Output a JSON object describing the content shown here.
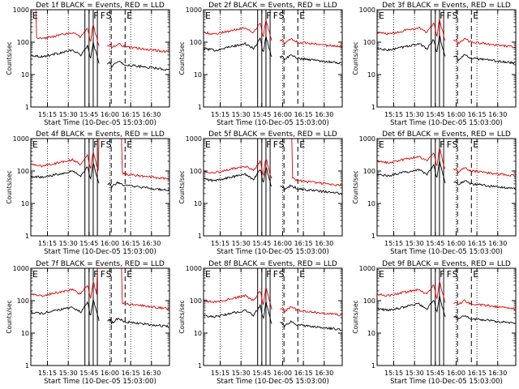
{
  "chart_data": [
    {
      "type": "line",
      "title": "Det 1f BLACK = Events, RED = LLD",
      "ylabel": "Counts/sec",
      "xlabel": "Start Time (10-Dec-05 15:03:00)",
      "x_tick_labels": [
        "15:15",
        "15:30",
        "15:45",
        "16:00",
        "16:15",
        "16:30"
      ],
      "y_tick_labels": [
        "1",
        "10",
        "100",
        "1000"
      ],
      "ylim": [
        1,
        1000
      ],
      "xlim_minutes": [
        0,
        100
      ],
      "flag_labels": [
        "E",
        "F",
        "F",
        "S",
        "E"
      ],
      "flag_minutes": [
        0,
        44,
        49,
        53,
        68
      ],
      "series": [
        {
          "name": "Events",
          "color": "#000000",
          "shape": "1"
        },
        {
          "name": "LLD",
          "color": "#e00000",
          "shape": "1r"
        }
      ]
    },
    {
      "type": "line",
      "title": "Det 2f BLACK = Events, RED = LLD",
      "ylabel": "Counts/sec",
      "xlabel": "Start Time (10-Dec-05 15:03:00)",
      "x_tick_labels": [
        "15:15",
        "15:30",
        "15:45",
        "16:00",
        "16:15",
        "16:30"
      ],
      "y_tick_labels": [
        "1",
        "10",
        "100",
        "1000"
      ],
      "ylim": [
        1,
        1000
      ],
      "xlim_minutes": [
        0,
        100
      ],
      "flag_labels": [
        "E",
        "F",
        "F",
        "S",
        "E"
      ],
      "flag_minutes": [
        0,
        44,
        49,
        53,
        68
      ],
      "series": [
        {
          "name": "Events",
          "color": "#000000",
          "shape": "2"
        },
        {
          "name": "LLD",
          "color": "#e00000",
          "shape": "2r"
        }
      ]
    },
    {
      "type": "line",
      "title": "Det 3f BLACK = Events, RED = LLD",
      "ylabel": "Counts/sec",
      "xlabel": "Start Time (10-Dec-05 15:03:00)",
      "x_tick_labels": [
        "15:15",
        "15:30",
        "15:45",
        "16:00",
        "16:15",
        "16:30"
      ],
      "y_tick_labels": [
        "1",
        "10",
        "100",
        "1000"
      ],
      "ylim": [
        1,
        1000
      ],
      "xlim_minutes": [
        0,
        100
      ],
      "flag_labels": [
        "E",
        "F",
        "F",
        "S",
        "E"
      ],
      "flag_minutes": [
        0,
        44,
        49,
        53,
        68
      ],
      "series": [
        {
          "name": "Events",
          "color": "#000000",
          "shape": "3"
        },
        {
          "name": "LLD",
          "color": "#e00000",
          "shape": "3r"
        }
      ]
    },
    {
      "type": "line",
      "title": "Det 4f BLACK = Events, RED = LLD",
      "ylabel": "Counts/sec",
      "xlabel": "Start Time (10-Dec-05 15:03:00)",
      "x_tick_labels": [
        "15:15",
        "15:30",
        "15:45",
        "16:00",
        "16:15",
        "16:30"
      ],
      "y_tick_labels": [
        "1",
        "10",
        "100",
        "1000"
      ],
      "ylim": [
        1,
        1000
      ],
      "xlim_minutes": [
        0,
        100
      ],
      "flag_labels": [
        "E",
        "F",
        "F",
        "S",
        "E"
      ],
      "flag_minutes": [
        0,
        44,
        49,
        53,
        68
      ],
      "series": [
        {
          "name": "Events",
          "color": "#000000",
          "shape": "4"
        },
        {
          "name": "LLD",
          "color": "#e00000",
          "shape": "4r"
        }
      ]
    },
    {
      "type": "line",
      "title": "Det 5f BLACK = Events, RED = LLD",
      "ylabel": "Counts/sec",
      "xlabel": "Start Time (10-Dec-05 15:03:00)",
      "x_tick_labels": [
        "15:15",
        "15:30",
        "15:45",
        "16:00",
        "16:15",
        "16:30"
      ],
      "y_tick_labels": [
        "1",
        "10",
        "100",
        "1000"
      ],
      "ylim": [
        1,
        1000
      ],
      "xlim_minutes": [
        0,
        100
      ],
      "flag_labels": [
        "E",
        "F",
        "F",
        "S",
        "E"
      ],
      "flag_minutes": [
        0,
        44,
        49,
        53,
        68
      ],
      "series": [
        {
          "name": "Events",
          "color": "#000000",
          "shape": "5"
        },
        {
          "name": "LLD",
          "color": "#e00000",
          "shape": "5r"
        }
      ]
    },
    {
      "type": "line",
      "title": "Det 6f BLACK = Events, RED = LLD",
      "ylabel": "Counts/sec",
      "xlabel": "Start Time (10-Dec-05 15:03:00)",
      "x_tick_labels": [
        "15:15",
        "15:30",
        "15:45",
        "16:00",
        "16:15",
        "16:30"
      ],
      "y_tick_labels": [
        "1",
        "10",
        "100",
        "1000"
      ],
      "ylim": [
        1,
        1000
      ],
      "xlim_minutes": [
        0,
        100
      ],
      "flag_labels": [
        "E",
        "F",
        "F",
        "S",
        "E"
      ],
      "flag_minutes": [
        0,
        44,
        49,
        53,
        68
      ],
      "series": [
        {
          "name": "Events",
          "color": "#000000",
          "shape": "6"
        },
        {
          "name": "LLD",
          "color": "#e00000",
          "shape": "6r"
        }
      ]
    },
    {
      "type": "line",
      "title": "Det 7f BLACK = Events, RED = LLD",
      "ylabel": "Counts/sec",
      "xlabel": "Start Time (10-Dec-05 15:03:00)",
      "x_tick_labels": [
        "15:15",
        "15:30",
        "15:45",
        "16:00",
        "16:15",
        "16:30"
      ],
      "y_tick_labels": [
        "1",
        "10",
        "100",
        "1000"
      ],
      "ylim": [
        1,
        1000
      ],
      "xlim_minutes": [
        0,
        100
      ],
      "flag_labels": [
        "E",
        "F",
        "F",
        "S",
        "E"
      ],
      "flag_minutes": [
        0,
        44,
        49,
        53,
        68
      ],
      "series": [
        {
          "name": "Events",
          "color": "#000000",
          "shape": "7"
        },
        {
          "name": "LLD",
          "color": "#e00000",
          "shape": "7r"
        }
      ]
    },
    {
      "type": "line",
      "title": "Det 8f BLACK = Events, RED = LLD",
      "ylabel": "Counts/sec",
      "xlabel": "Start Time (10-Dec-05 15:03:00)",
      "x_tick_labels": [
        "15:15",
        "15:30",
        "15:45",
        "16:00",
        "16:15",
        "16:30"
      ],
      "y_tick_labels": [
        "1",
        "10",
        "100",
        "1000"
      ],
      "ylim": [
        1,
        1000
      ],
      "xlim_minutes": [
        0,
        100
      ],
      "flag_labels": [
        "E",
        "F",
        "F",
        "S",
        "E"
      ],
      "flag_minutes": [
        0,
        44,
        49,
        53,
        68
      ],
      "series": [
        {
          "name": "Events",
          "color": "#000000",
          "shape": "8"
        },
        {
          "name": "LLD",
          "color": "#e00000",
          "shape": "8r"
        }
      ]
    },
    {
      "type": "line",
      "title": "Det 9f BLACK = Events, RED = LLD",
      "ylabel": "Counts/sec",
      "xlabel": "Start Time (10-Dec-05 15:03:00)",
      "x_tick_labels": [
        "15:15",
        "15:30",
        "15:45",
        "16:00",
        "16:15",
        "16:30"
      ],
      "y_tick_labels": [
        "1",
        "10",
        "100",
        "1000"
      ],
      "ylim": [
        1,
        1000
      ],
      "xlim_minutes": [
        0,
        100
      ],
      "flag_labels": [
        "E",
        "F",
        "F",
        "S",
        "E"
      ],
      "flag_minutes": [
        0,
        44,
        49,
        53,
        68
      ],
      "series": [
        {
          "name": "Events",
          "color": "#000000",
          "shape": "9"
        },
        {
          "name": "LLD",
          "color": "#e00000",
          "shape": "9r"
        }
      ]
    }
  ],
  "vertical_line_minutes": {
    "dotted": [
      12,
      27,
      57,
      72,
      87
    ],
    "solid": [
      39,
      42,
      45,
      48
    ],
    "dashed": [
      58,
      68
    ]
  }
}
